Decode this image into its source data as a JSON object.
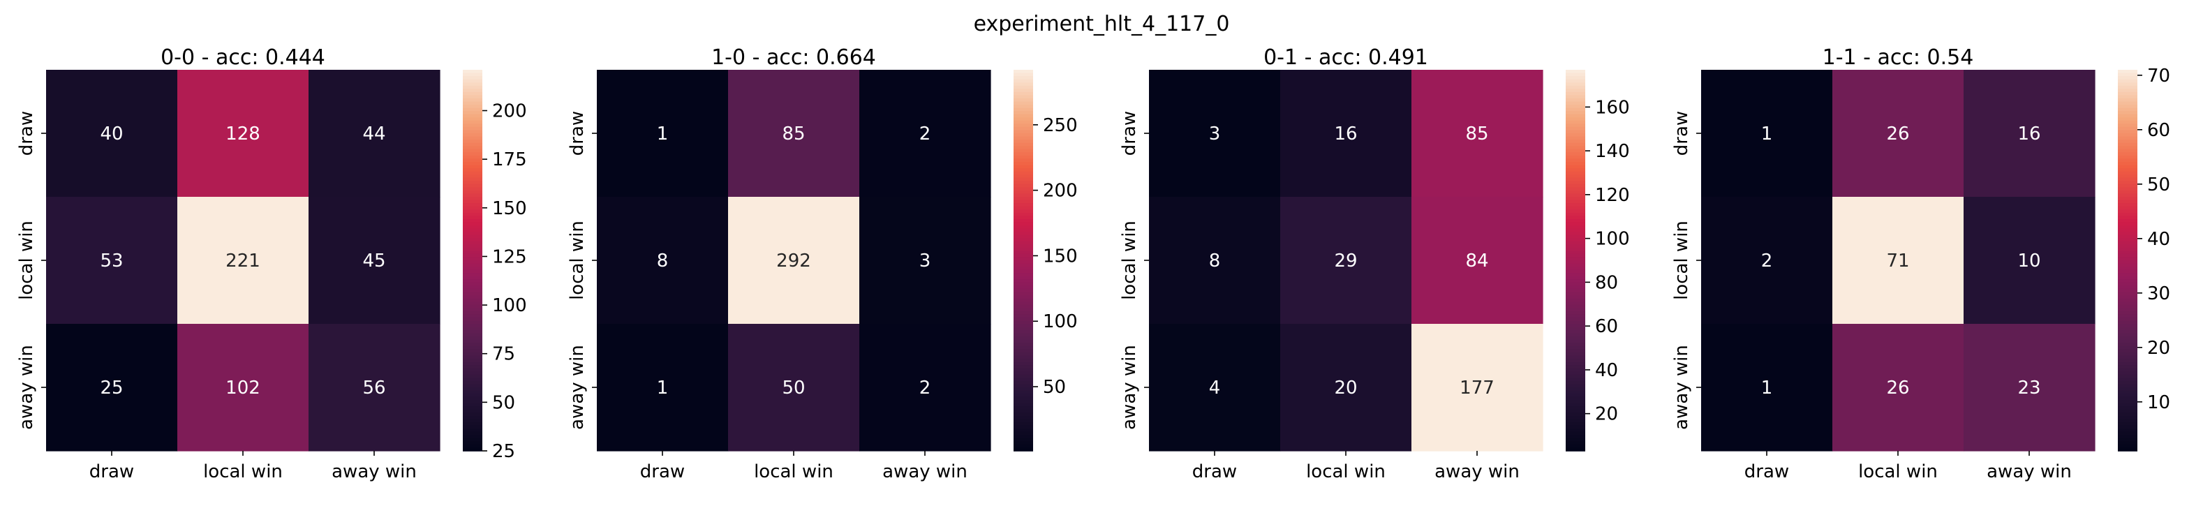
{
  "figure": {
    "title": "experiment_hlt_4_117_0"
  },
  "chart_data": [
    {
      "type": "heatmap",
      "title": "0-0 - acc: 0.444",
      "x_categories": [
        "draw",
        "local win",
        "away win"
      ],
      "y_categories": [
        "draw",
        "local win",
        "away win"
      ],
      "values": [
        [
          40,
          128,
          44
        ],
        [
          53,
          221,
          45
        ],
        [
          25,
          102,
          56
        ]
      ],
      "colorbar": {
        "min": 25,
        "max": 221,
        "ticks": [
          "25",
          "50",
          "75",
          "100",
          "125",
          "150",
          "175",
          "200"
        ],
        "tick_values": [
          25,
          50,
          75,
          100,
          125,
          150,
          175,
          200
        ]
      }
    },
    {
      "type": "heatmap",
      "title": "1-0 - acc: 0.664",
      "x_categories": [
        "draw",
        "local win",
        "away win"
      ],
      "y_categories": [
        "draw",
        "local win",
        "away win"
      ],
      "values": [
        [
          1,
          85,
          2
        ],
        [
          8,
          292,
          3
        ],
        [
          1,
          50,
          2
        ]
      ],
      "colorbar": {
        "min": 1,
        "max": 292,
        "ticks": [
          "50",
          "100",
          "150",
          "200",
          "250"
        ],
        "tick_values": [
          50,
          100,
          150,
          200,
          250
        ]
      }
    },
    {
      "type": "heatmap",
      "title": "0-1 - acc: 0.491",
      "x_categories": [
        "draw",
        "local win",
        "away win"
      ],
      "y_categories": [
        "draw",
        "local win",
        "away win"
      ],
      "values": [
        [
          3,
          16,
          85
        ],
        [
          8,
          29,
          84
        ],
        [
          4,
          20,
          177
        ]
      ],
      "colorbar": {
        "min": 3,
        "max": 177,
        "ticks": [
          "20",
          "40",
          "60",
          "80",
          "100",
          "120",
          "140",
          "160"
        ],
        "tick_values": [
          20,
          40,
          60,
          80,
          100,
          120,
          140,
          160
        ]
      }
    },
    {
      "type": "heatmap",
      "title": "1-1 - acc: 0.54",
      "x_categories": [
        "draw",
        "local win",
        "away win"
      ],
      "y_categories": [
        "draw",
        "local win",
        "away win"
      ],
      "values": [
        [
          1,
          26,
          16
        ],
        [
          2,
          71,
          10
        ],
        [
          1,
          26,
          23
        ]
      ],
      "colorbar": {
        "min": 1,
        "max": 71,
        "ticks": [
          "10",
          "20",
          "30",
          "40",
          "50",
          "60",
          "70"
        ],
        "tick_values": [
          10,
          20,
          30,
          40,
          50,
          60,
          70
        ]
      }
    }
  ]
}
